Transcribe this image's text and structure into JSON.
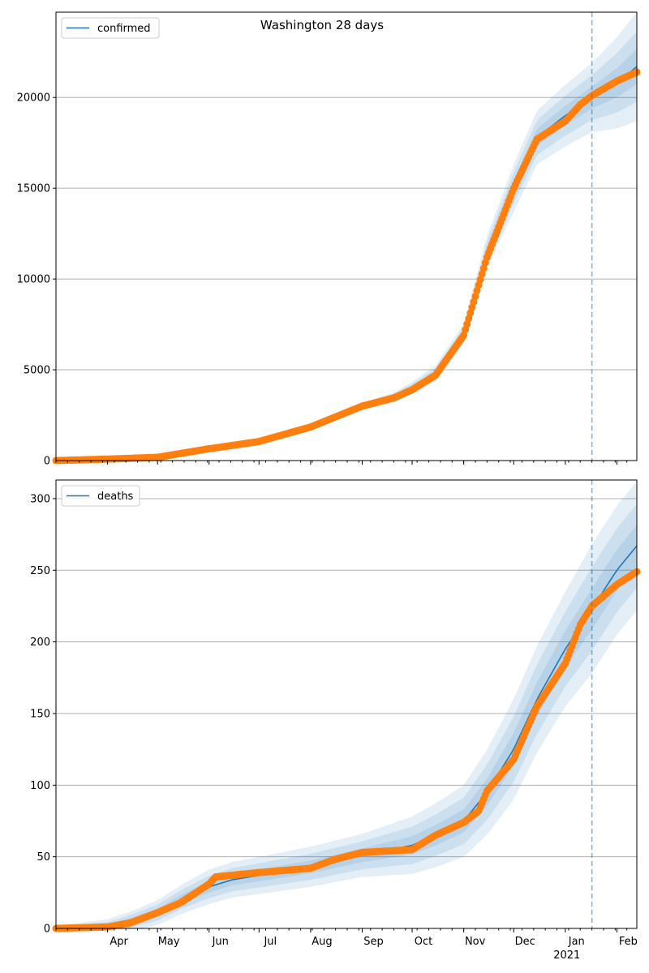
{
  "figure": {
    "title": "Washington 28 days"
  },
  "colors": {
    "model_line": "#1f77b4",
    "band": "#1f77b4",
    "observed": "#ff7f0e",
    "grid": "#b0b0b0",
    "vline": "#1f77b4"
  },
  "chart_data": [
    {
      "type": "line",
      "legend": "confirmed",
      "legend_position": "top-left",
      "grid": "horizontal",
      "x_range": [
        "2020-03-01",
        "2021-02-13"
      ],
      "ylim": [
        0,
        24700
      ],
      "yticks": [
        0,
        5000,
        10000,
        15000,
        20000
      ],
      "forecast_start": "2021-01-17",
      "model_keypoints": [
        [
          "2020-03-01",
          0
        ],
        [
          "2020-04-01",
          80
        ],
        [
          "2020-05-01",
          180
        ],
        [
          "2020-06-01",
          650
        ],
        [
          "2020-07-01",
          1050
        ],
        [
          "2020-08-01",
          1850
        ],
        [
          "2020-09-01",
          3000
        ],
        [
          "2020-09-20",
          3500
        ],
        [
          "2020-10-01",
          4000
        ],
        [
          "2020-10-15",
          4800
        ],
        [
          "2020-11-01",
          7000
        ],
        [
          "2020-11-15",
          11500
        ],
        [
          "2020-12-01",
          15000
        ],
        [
          "2020-12-15",
          17800
        ],
        [
          "2021-01-01",
          19000
        ],
        [
          "2021-01-17",
          20000
        ],
        [
          "2021-02-01",
          20800
        ],
        [
          "2021-02-13",
          21700
        ]
      ],
      "band_halfwidths": [
        [
          "2020-03-01",
          0
        ],
        [
          "2020-08-01",
          100
        ],
        [
          "2020-09-15",
          230
        ],
        [
          "2020-11-01",
          550
        ],
        [
          "2020-12-01",
          1300
        ],
        [
          "2021-01-01",
          1700
        ],
        [
          "2021-01-17",
          1900
        ],
        [
          "2021-02-13",
          3000
        ]
      ],
      "observed_keypoints": [
        [
          "2020-03-01",
          0
        ],
        [
          "2020-04-01",
          80
        ],
        [
          "2020-05-01",
          180
        ],
        [
          "2020-06-01",
          650
        ],
        [
          "2020-07-01",
          1050
        ],
        [
          "2020-08-01",
          1850
        ],
        [
          "2020-09-01",
          3000
        ],
        [
          "2020-09-20",
          3450
        ],
        [
          "2020-10-01",
          3900
        ],
        [
          "2020-10-15",
          4700
        ],
        [
          "2020-11-01",
          6900
        ],
        [
          "2020-11-15",
          11200
        ],
        [
          "2020-12-01",
          15000
        ],
        [
          "2020-12-15",
          17700
        ],
        [
          "2021-01-01",
          18700
        ],
        [
          "2021-01-10",
          19600
        ],
        [
          "2021-01-17",
          20100
        ],
        [
          "2021-02-01",
          20900
        ],
        [
          "2021-02-13",
          21400
        ]
      ]
    },
    {
      "type": "line",
      "legend": "deaths",
      "legend_position": "top-left",
      "grid": "horizontal",
      "x_range": [
        "2020-03-01",
        "2021-02-13"
      ],
      "ylim": [
        0,
        313
      ],
      "yticks": [
        0,
        50,
        100,
        150,
        200,
        250,
        300
      ],
      "forecast_start": "2021-01-17",
      "model_keypoints": [
        [
          "2020-03-01",
          0
        ],
        [
          "2020-04-01",
          1
        ],
        [
          "2020-04-15",
          5
        ],
        [
          "2020-05-01",
          11
        ],
        [
          "2020-05-15",
          20
        ],
        [
          "2020-06-01",
          29
        ],
        [
          "2020-06-15",
          34
        ],
        [
          "2020-07-01",
          37
        ],
        [
          "2020-08-01",
          43
        ],
        [
          "2020-09-01",
          51
        ],
        [
          "2020-10-01",
          58
        ],
        [
          "2020-10-15",
          65
        ],
        [
          "2020-11-01",
          75
        ],
        [
          "2020-11-15",
          95
        ],
        [
          "2020-12-01",
          125
        ],
        [
          "2020-12-15",
          160
        ],
        [
          "2021-01-01",
          195
        ],
        [
          "2021-01-17",
          223
        ],
        [
          "2021-02-01",
          250
        ],
        [
          "2021-02-13",
          267
        ]
      ],
      "band_halfwidths": [
        [
          "2020-03-01",
          2
        ],
        [
          "2020-06-01",
          12
        ],
        [
          "2020-09-01",
          15
        ],
        [
          "2020-10-01",
          20
        ],
        [
          "2020-11-01",
          25
        ],
        [
          "2020-12-01",
          35
        ],
        [
          "2021-01-01",
          40
        ],
        [
          "2021-01-17",
          45
        ],
        [
          "2021-02-13",
          45
        ]
      ],
      "observed_keypoints": [
        [
          "2020-03-01",
          0
        ],
        [
          "2020-04-01",
          1
        ],
        [
          "2020-04-15",
          4
        ],
        [
          "2020-05-01",
          11
        ],
        [
          "2020-05-15",
          18
        ],
        [
          "2020-06-01",
          31
        ],
        [
          "2020-06-05",
          36
        ],
        [
          "2020-07-01",
          39
        ],
        [
          "2020-08-01",
          42
        ],
        [
          "2020-08-15",
          48
        ],
        [
          "2020-09-01",
          53
        ],
        [
          "2020-10-01",
          55
        ],
        [
          "2020-10-15",
          65
        ],
        [
          "2020-11-01",
          74
        ],
        [
          "2020-11-10",
          82
        ],
        [
          "2020-11-15",
          96
        ],
        [
          "2020-12-01",
          118
        ],
        [
          "2020-12-15",
          155
        ],
        [
          "2021-01-01",
          185
        ],
        [
          "2021-01-10",
          212
        ],
        [
          "2021-01-17",
          225
        ],
        [
          "2021-02-01",
          240
        ],
        [
          "2021-02-13",
          249
        ]
      ]
    }
  ],
  "x_axis": {
    "month_labels": [
      {
        "date": "2020-04-01",
        "label": "Apr"
      },
      {
        "date": "2020-05-01",
        "label": "May"
      },
      {
        "date": "2020-06-01",
        "label": "Jun"
      },
      {
        "date": "2020-07-01",
        "label": "Jul"
      },
      {
        "date": "2020-08-01",
        "label": "Aug"
      },
      {
        "date": "2020-09-01",
        "label": "Sep"
      },
      {
        "date": "2020-10-01",
        "label": "Oct"
      },
      {
        "date": "2020-11-01",
        "label": "Nov"
      },
      {
        "date": "2020-12-01",
        "label": "Dec"
      },
      {
        "date": "2021-01-01",
        "label": "Jan"
      },
      {
        "date": "2021-02-01",
        "label": "Feb"
      }
    ],
    "year_label": {
      "date": "2021-01-01",
      "label": "2021"
    }
  }
}
